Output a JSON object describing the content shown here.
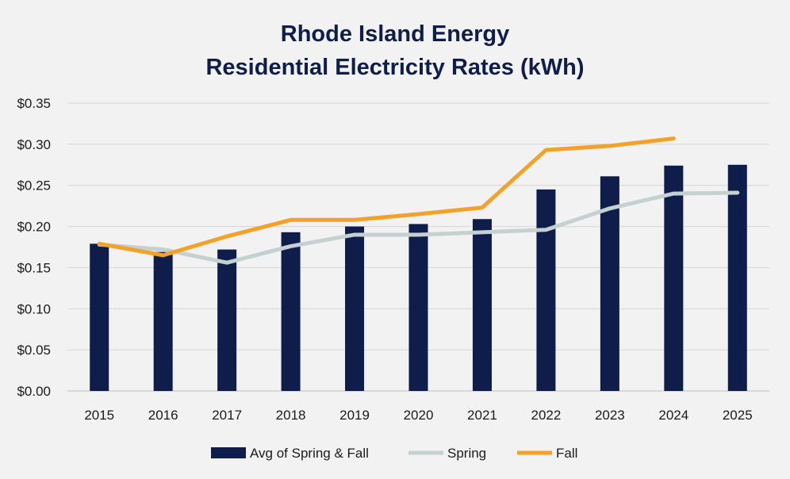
{
  "chart_data": {
    "type": "bar",
    "title_line1": "Rhode Island Energy",
    "title_line2": "Residential Electricity Rates (kWh)",
    "categories": [
      "2015",
      "2016",
      "2017",
      "2018",
      "2019",
      "2020",
      "2021",
      "2022",
      "2023",
      "2024",
      "2025"
    ],
    "ylim": [
      0,
      0.35
    ],
    "y_ticks": [
      {
        "value": 0.0,
        "label": "$0.00"
      },
      {
        "value": 0.05,
        "label": "$0.05"
      },
      {
        "value": 0.1,
        "label": "$0.10"
      },
      {
        "value": 0.15,
        "label": "$0.15"
      },
      {
        "value": 0.2,
        "label": "$0.20"
      },
      {
        "value": 0.25,
        "label": "$0.25"
      },
      {
        "value": 0.3,
        "label": "$0.30"
      },
      {
        "value": 0.35,
        "label": "$0.35"
      }
    ],
    "grid": true,
    "legend_position": "bottom",
    "series": [
      {
        "name": "Avg of Spring & Fall",
        "kind": "bar",
        "color": "#0f1d4a",
        "values": [
          0.179,
          0.169,
          0.172,
          0.193,
          0.2,
          0.203,
          0.209,
          0.245,
          0.261,
          0.274,
          0.275
        ]
      },
      {
        "name": "Spring",
        "kind": "line",
        "color": "#c5d1d0",
        "values": [
          0.178,
          0.172,
          0.156,
          0.176,
          0.19,
          0.19,
          0.193,
          0.196,
          0.222,
          0.24,
          0.241
        ]
      },
      {
        "name": "Fall",
        "kind": "line",
        "color": "#f2a22a",
        "values": [
          0.179,
          0.165,
          0.188,
          0.208,
          0.208,
          0.215,
          0.223,
          0.293,
          0.298,
          0.307,
          null
        ]
      }
    ]
  }
}
